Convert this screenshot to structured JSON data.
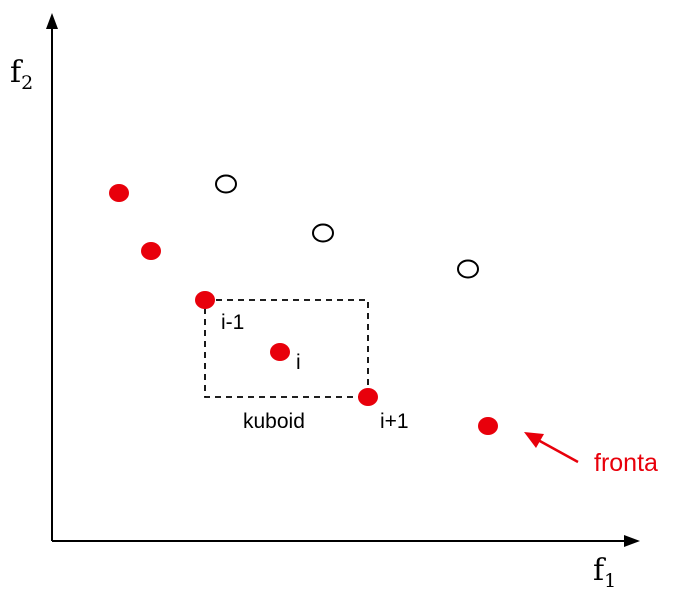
{
  "axes": {
    "y_label": "f",
    "y_subscript": "2",
    "x_label": "f",
    "x_subscript": "1"
  },
  "labels": {
    "prev_point": "i-1",
    "current_point": "i",
    "next_point": "i+1",
    "cuboid": "kuboid",
    "front": "fronta"
  },
  "colors": {
    "front_points": "#e8000b",
    "dominated_points": "#000000",
    "axes": "#000000",
    "front_label": "#e8000b"
  }
}
